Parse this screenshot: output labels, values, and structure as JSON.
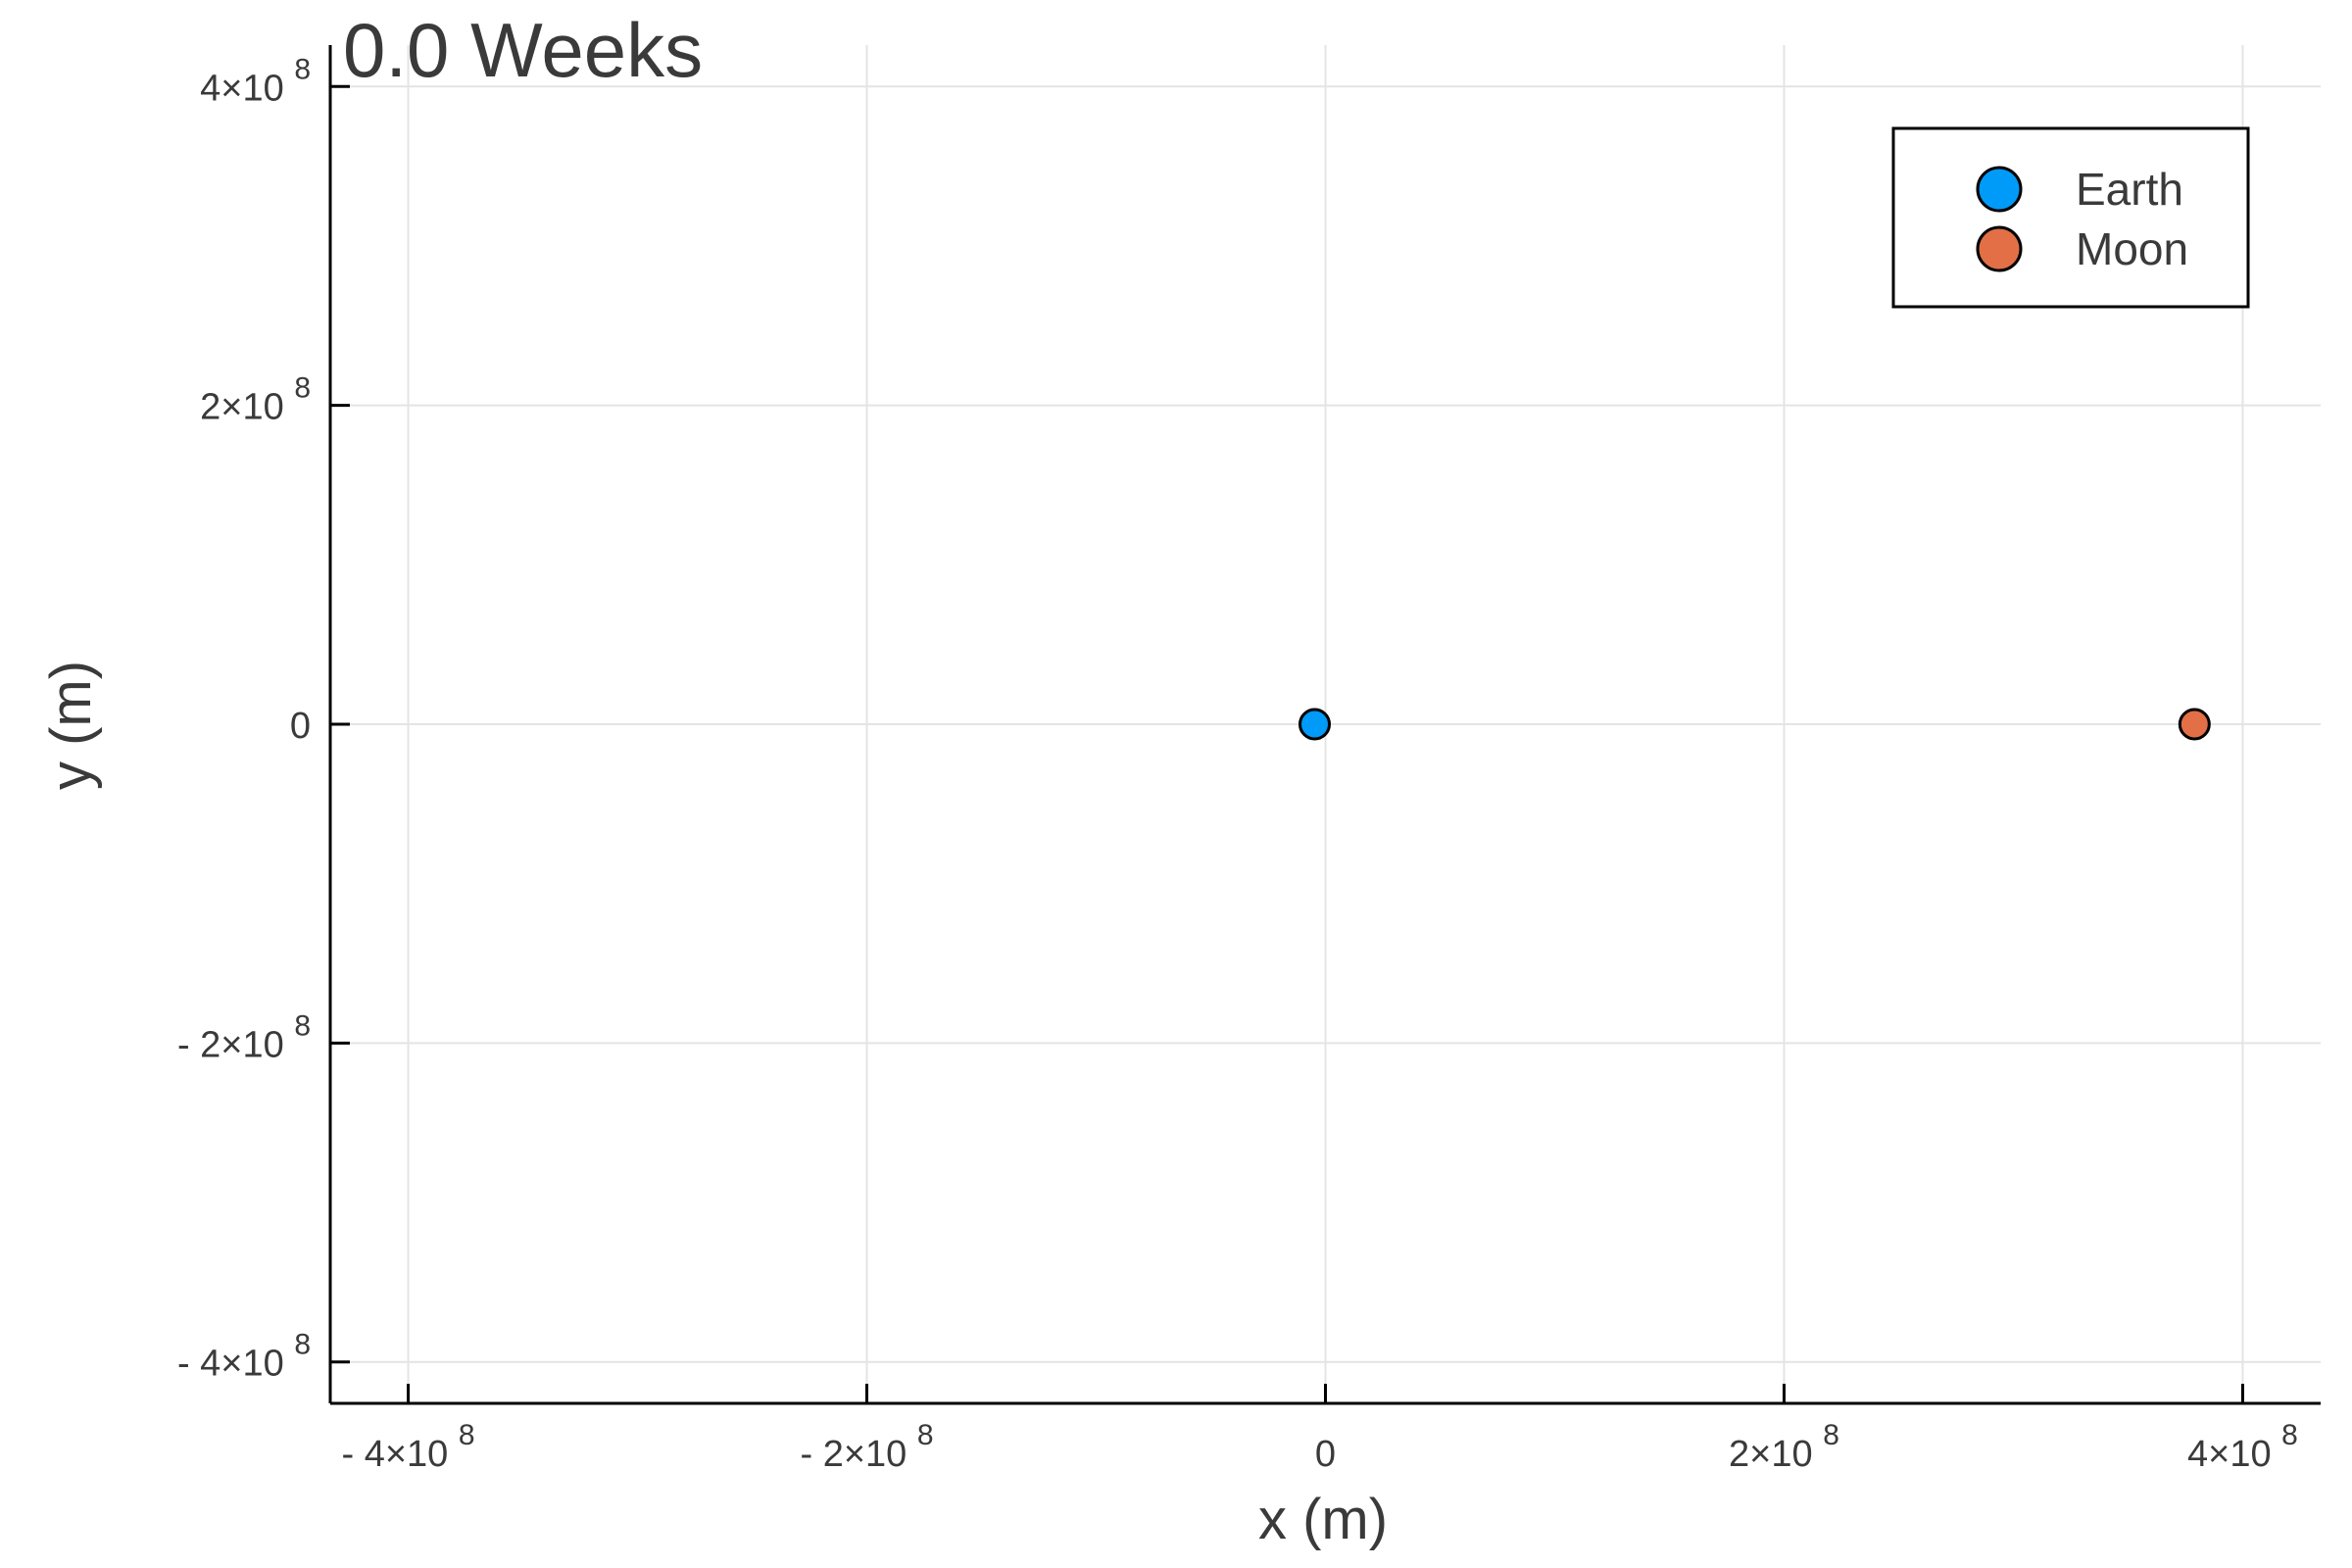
{
  "chart_data": {
    "type": "scatter",
    "title": "0.0 Weeks",
    "xlabel": "x (m)",
    "ylabel": "y (m)",
    "xlim": [
      -434000000,
      434000000
    ],
    "ylim": [
      -426000000,
      426000000
    ],
    "grid": true,
    "legend_position": "top-right",
    "x_ticks": [
      {
        "value": -400000000,
        "label": "- 4×10 8"
      },
      {
        "value": -200000000,
        "label": "- 2×10 8"
      },
      {
        "value": 0,
        "label": "0"
      },
      {
        "value": 200000000,
        "label": "2×10 8"
      },
      {
        "value": 400000000,
        "label": "4×10 8"
      }
    ],
    "y_ticks": [
      {
        "value": 400000000,
        "label": "4×10 8"
      },
      {
        "value": 200000000,
        "label": "2×10 8"
      },
      {
        "value": 0,
        "label": "0"
      },
      {
        "value": -200000000,
        "label": "- 2×10 8"
      },
      {
        "value": -400000000,
        "label": "- 4×10 8"
      }
    ],
    "series": [
      {
        "name": "Earth",
        "color": "#009af9",
        "points": [
          {
            "x": -4700000,
            "y": 0
          }
        ]
      },
      {
        "name": "Moon",
        "color": "#e26f46",
        "points": [
          {
            "x": 379000000,
            "y": 0
          }
        ]
      }
    ]
  }
}
